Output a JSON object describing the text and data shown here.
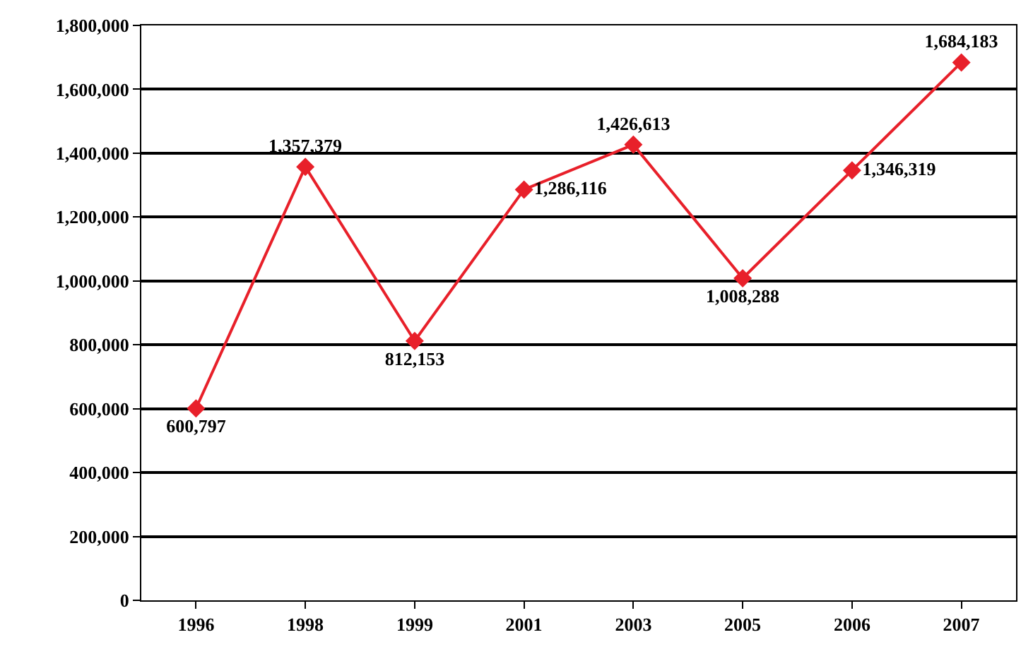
{
  "chart_data": {
    "type": "line",
    "categories": [
      "1996",
      "1998",
      "1999",
      "2001",
      "2003",
      "2005",
      "2006",
      "2007"
    ],
    "series": [
      {
        "color": "#e8202a",
        "values": [
          600797,
          1357379,
          812153,
          1286116,
          1426613,
          1008288,
          1346319,
          1684183
        ],
        "value_labels": [
          "600,797",
          "1,357,379",
          "812,153",
          "1,286,116",
          "1,426,613",
          "1,008,288",
          "1,346,319",
          "1,684,183"
        ]
      }
    ],
    "ylim": [
      0,
      1800000
    ],
    "yticks": [
      {
        "value": 0,
        "label": "0"
      },
      {
        "value": 200000,
        "label": "200,000"
      },
      {
        "value": 400000,
        "label": "400,000"
      },
      {
        "value": 600000,
        "label": "600,000"
      },
      {
        "value": 800000,
        "label": "800,000"
      },
      {
        "value": 1000000,
        "label": "1,000,000"
      },
      {
        "value": 1200000,
        "label": "1,200,000"
      },
      {
        "value": 1400000,
        "label": "1,400,000"
      },
      {
        "value": 1600000,
        "label": "1,600,000"
      },
      {
        "value": 1800000,
        "label": "1,800,000"
      }
    ],
    "grid": "y",
    "marker": "diamond",
    "line_style": "solid"
  }
}
